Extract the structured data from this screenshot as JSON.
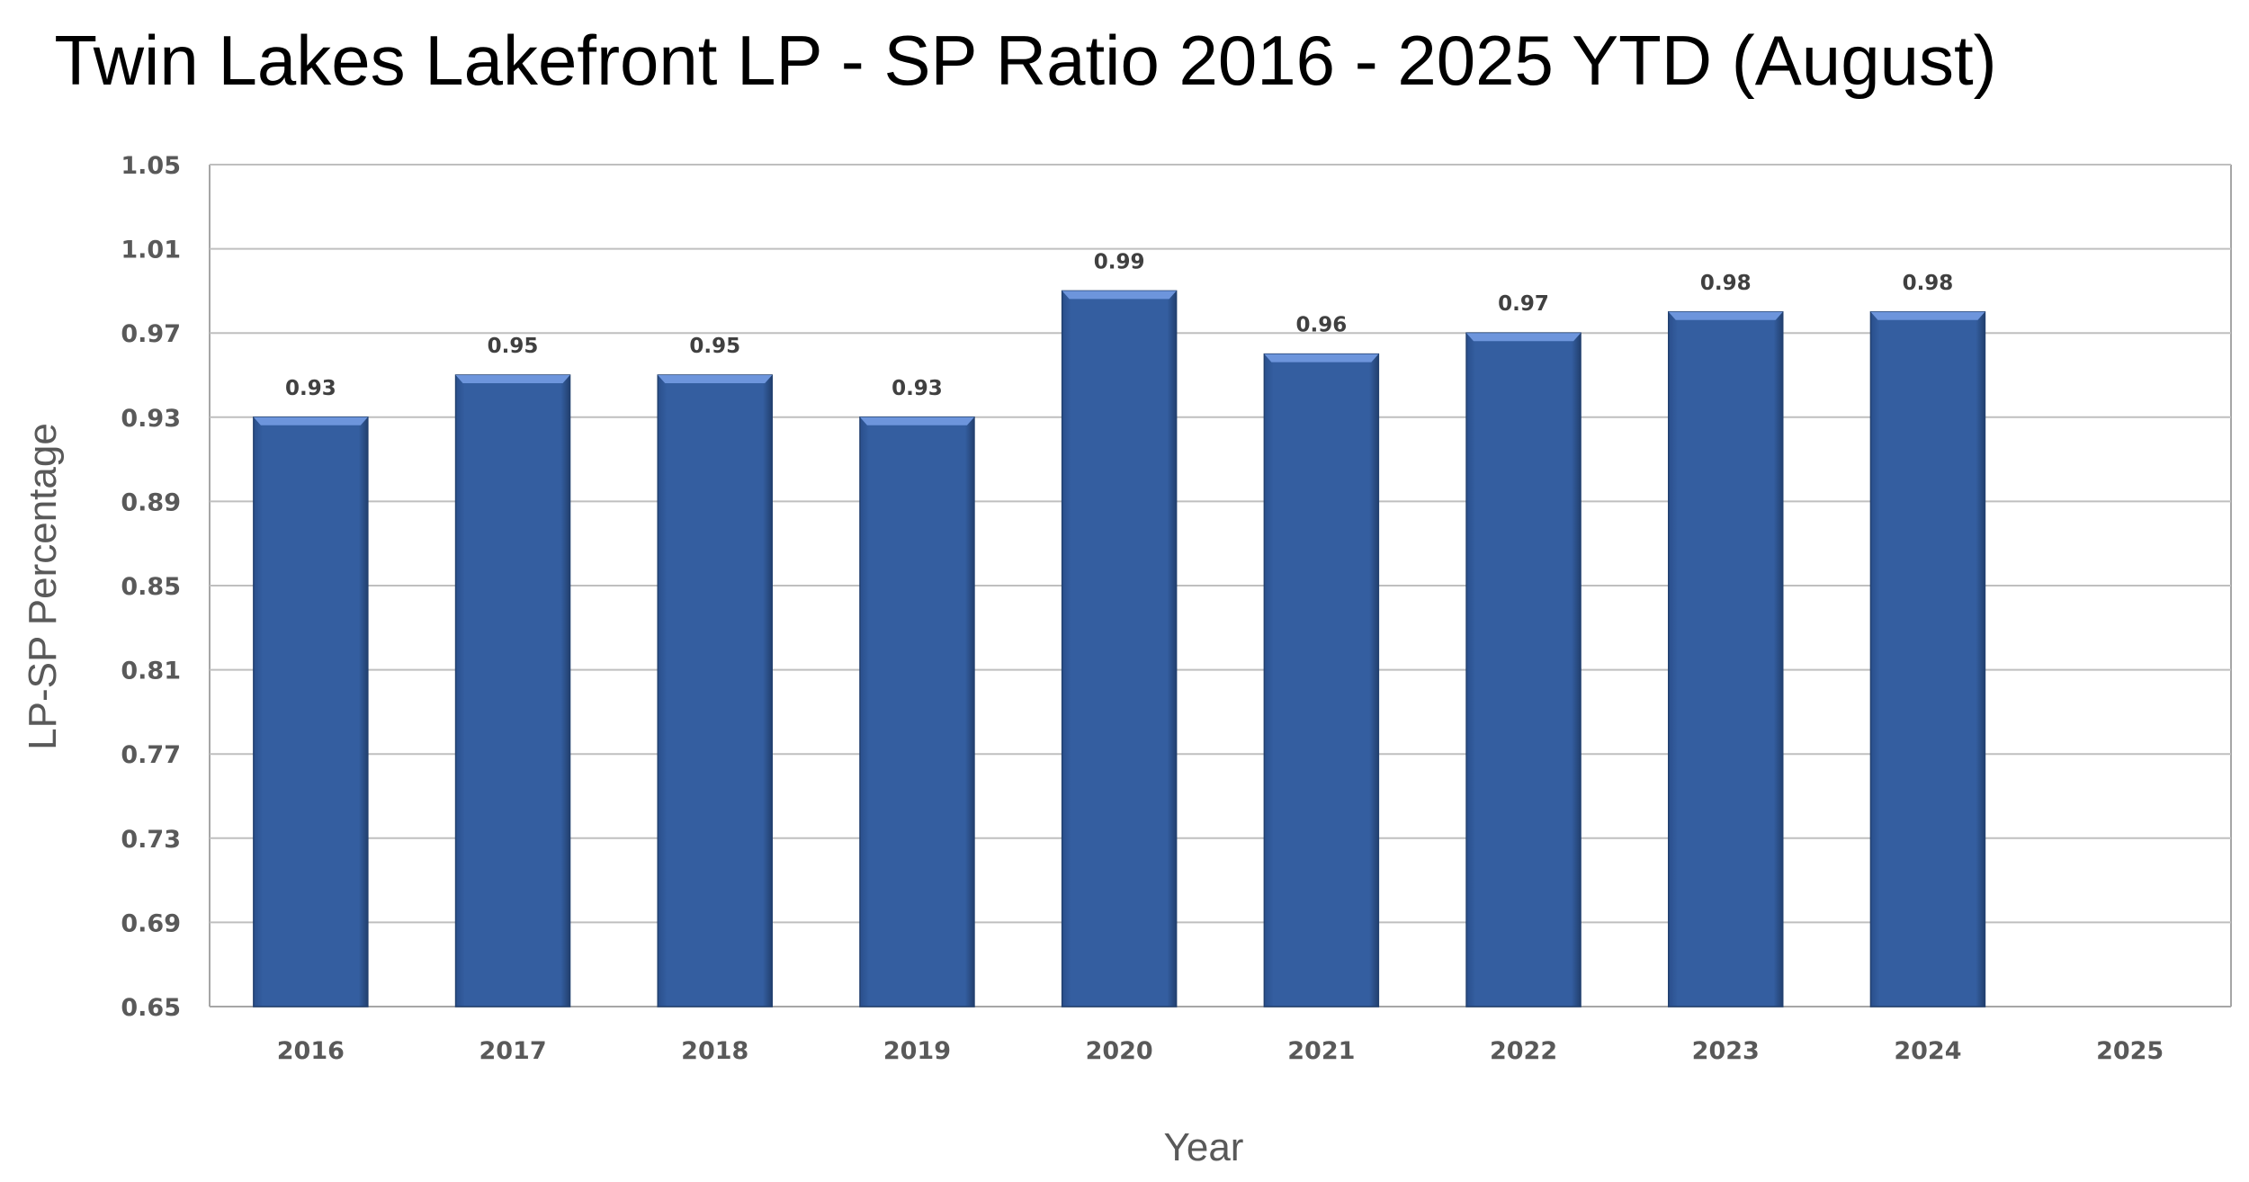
{
  "chart_data": {
    "type": "bar",
    "title": "Twin Lakes Lakefront LP - SP Ratio 2016 - 2025 YTD (August)",
    "xlabel": "Year",
    "ylabel": "LP-SP Percentage",
    "categories": [
      "2016",
      "2017",
      "2018",
      "2019",
      "2020",
      "2021",
      "2022",
      "2023",
      "2024",
      "2025"
    ],
    "values": [
      0.93,
      0.95,
      0.95,
      0.93,
      0.99,
      0.96,
      0.97,
      0.98,
      0.98,
      null
    ],
    "data_labels": [
      "0.93",
      "0.95",
      "0.95",
      "0.93",
      "0.99",
      "0.96",
      "0.97",
      "0.98",
      "0.98",
      ""
    ],
    "ylim": [
      0.65,
      1.05
    ],
    "yticks": [
      "0.65",
      "0.69",
      "0.73",
      "0.77",
      "0.81",
      "0.85",
      "0.89",
      "0.93",
      "0.97",
      "1.01",
      "1.05"
    ],
    "grid": true,
    "legend": "none",
    "colors": {
      "bar": "#345ea0",
      "bar_top": "#6d95dc",
      "bar_edge": "#22406f",
      "grid": "#bfbfbf"
    }
  }
}
